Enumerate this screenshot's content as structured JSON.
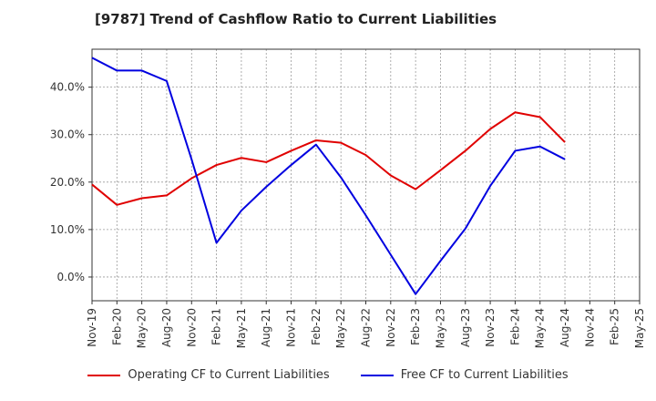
{
  "chart_data": {
    "type": "line",
    "title": "[9787]  Trend of Cashflow Ratio to Current Liabilities",
    "xlabel": "",
    "ylabel": "",
    "categories": [
      "Nov-19",
      "Feb-20",
      "May-20",
      "Aug-20",
      "Nov-20",
      "Feb-21",
      "May-21",
      "Aug-21",
      "Nov-21",
      "Feb-22",
      "May-22",
      "Aug-22",
      "Nov-22",
      "Feb-23",
      "May-23",
      "Aug-23",
      "Nov-23",
      "Feb-24",
      "May-24",
      "Aug-24",
      "Nov-24",
      "Feb-25",
      "May-25"
    ],
    "y_ticks": [
      "0.0%",
      "10.0%",
      "20.0%",
      "30.0%",
      "40.0%"
    ],
    "ylim": [
      -5,
      48
    ],
    "grid": true,
    "legend_position": "bottom",
    "series": [
      {
        "name": "Operating CF to Current Liabilities",
        "color": "#e00000",
        "values": [
          19.5,
          15.2,
          16.6,
          17.2,
          20.8,
          23.6,
          25.1,
          24.2,
          26.6,
          28.8,
          28.3,
          25.7,
          21.4,
          18.5,
          22.5,
          26.6,
          31.2,
          34.7,
          33.7,
          28.4,
          null,
          null,
          null
        ]
      },
      {
        "name": "Free CF to Current Liabilities",
        "color": "#0000e0",
        "values": [
          46.2,
          43.5,
          43.5,
          41.3,
          24.8,
          7.2,
          14.0,
          19.0,
          23.6,
          27.9,
          21.0,
          13.0,
          4.7,
          -3.6,
          3.4,
          10.2,
          19.2,
          26.6,
          27.5,
          24.8,
          null,
          null,
          null
        ]
      }
    ]
  }
}
